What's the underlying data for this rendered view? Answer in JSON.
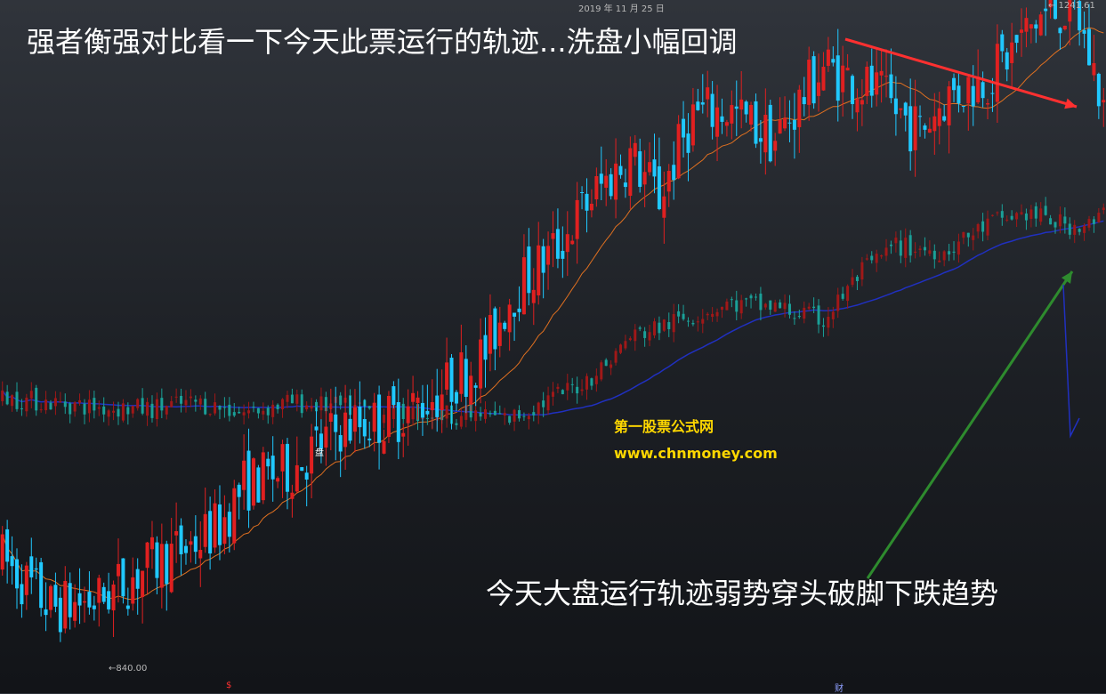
{
  "texts": {
    "title_left": "强者衡强对比看一下今天此票运行的轨迹...洗盘小幅回调",
    "caption_bottom": "今天大盘运行轨迹弱势穿头破脚下跌趋势",
    "watermark_name": "第一股票公式网",
    "watermark_url": "www.chnmoney.com",
    "date_label": "2019 年 11 月 25 日",
    "max_label": "← 1241.61",
    "min_label": "←840.00",
    "marker_pan": "盘",
    "marker_dollar": "$",
    "marker_cai": "财"
  },
  "colors": {
    "up": "#e02020",
    "down": "#20c8ff",
    "stock_ma": "#e07020",
    "index_ma": "#2030c0",
    "index_up": "#a01818",
    "index_down": "#1aa098",
    "arrow_red": "#ff3030",
    "arrow_green": "#2e8b2e",
    "watermark": "#ffd800"
  },
  "chart_data": {
    "type": "candlestick",
    "series": [
      {
        "name": "",
        "price_range": [
          840.0,
          1241.61
        ],
        "trend": [
          [
            0,
            905
          ],
          [
            10,
            875
          ],
          [
            20,
            880
          ],
          [
            30,
            900
          ],
          [
            40,
            915
          ],
          [
            45,
            925
          ],
          [
            50,
            950
          ],
          [
            60,
            960
          ],
          [
            70,
            985
          ],
          [
            80,
            990
          ],
          [
            90,
            1005
          ],
          [
            100,
            1030
          ],
          [
            105,
            1065
          ],
          [
            115,
            1095
          ],
          [
            122,
            1125
          ],
          [
            130,
            1150
          ],
          [
            136,
            1125
          ],
          [
            143,
            1175
          ],
          [
            150,
            1178
          ],
          [
            160,
            1160
          ],
          [
            170,
            1205
          ],
          [
            180,
            1190
          ],
          [
            190,
            1165
          ],
          [
            195,
            1185
          ],
          [
            205,
            1200
          ],
          [
            215,
            1235
          ],
          [
            222,
            1241.61
          ],
          [
            228,
            1180
          ]
        ]
      },
      {
        "name": "",
        "trend": [
          [
            0,
            1003
          ],
          [
            10,
            1000
          ],
          [
            20,
            997
          ],
          [
            30,
            996
          ],
          [
            40,
            1000
          ],
          [
            50,
            994
          ],
          [
            60,
            1000
          ],
          [
            70,
            997
          ],
          [
            80,
            994
          ],
          [
            90,
            993
          ],
          [
            100,
            992
          ],
          [
            105,
            990
          ],
          [
            112,
            1000
          ],
          [
            120,
            1012
          ],
          [
            125,
            1023
          ],
          [
            130,
            1040
          ],
          [
            140,
            1050
          ],
          [
            150,
            1060
          ],
          [
            160,
            1058
          ],
          [
            170,
            1050
          ],
          [
            178,
            1080
          ],
          [
            185,
            1095
          ],
          [
            195,
            1092
          ],
          [
            205,
            1110
          ],
          [
            212,
            1115
          ],
          [
            220,
            1108
          ],
          [
            226,
            1108
          ],
          [
            228,
            1115
          ]
        ]
      }
    ],
    "ylim": [
      840.0,
      1241.61
    ]
  }
}
